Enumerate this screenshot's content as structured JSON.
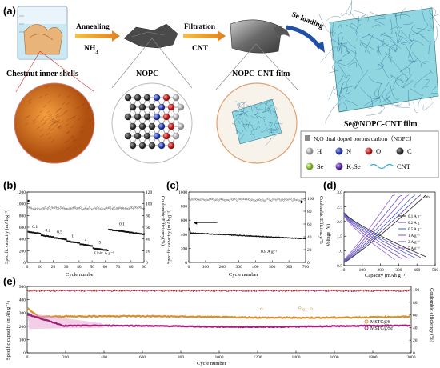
{
  "panel_a": {
    "label": "(a)",
    "step1": {
      "top": "Annealing",
      "bottom": "NH",
      "sub": "3"
    },
    "step2": {
      "top": "Filtration",
      "bottom": "CNT"
    },
    "step3": {
      "top": "Se loading"
    },
    "captions": {
      "shells": "Chestnut inner shells",
      "nopc": "NOPC",
      "film": "NOPC-CNT film",
      "se_film": "Se@NOPC-CNT film"
    },
    "legend": {
      "title": "N,O dual doped porous carbon（NOPC）",
      "h": "H",
      "n": "N",
      "o": "O",
      "c": "C",
      "se": "Se",
      "k2se": "K₂Se",
      "cnt": "CNT"
    }
  },
  "panel_b": {
    "label": "(b)",
    "ylabel": "Specific capacity (mAh g⁻¹)",
    "y2label": "Coulombic Efficiency(%)",
    "xlabel": "Cycle number",
    "yticks": [
      "0",
      "200",
      "400",
      "600",
      "800",
      "1000",
      "1200"
    ],
    "y2ticks": [
      "0",
      "20",
      "40",
      "60",
      "80",
      "100",
      "120"
    ],
    "xticks": [
      "0",
      "10",
      "20",
      "30",
      "40",
      "50",
      "60",
      "70",
      "80",
      "90"
    ],
    "rate_labels": [
      "0.1",
      "0.2",
      "0.5",
      "1",
      "2",
      "5",
      "0.1"
    ],
    "unit_note": "Unit: A g⁻¹"
  },
  "panel_c": {
    "label": "(c)",
    "ylabel": "Specific capacity (mAh g⁻¹)",
    "y2label": "Coulombic Efficiency/%",
    "xlabel": "Cycle number",
    "yticks": [
      "0",
      "200",
      "400",
      "600",
      "800",
      "1000"
    ],
    "y2ticks": [
      "0",
      "20",
      "40",
      "60",
      "80",
      "100"
    ],
    "xticks": [
      "0",
      "100",
      "200",
      "300",
      "400",
      "500",
      "600",
      "700"
    ],
    "current_note": "0.8 A g⁻¹"
  },
  "panel_d": {
    "label": "(d)",
    "ylabel": "Voltage (V)",
    "xlabel": "Capacity (mAh g⁻¹)",
    "yticks": [
      "0.5",
      "1.0",
      "1.5",
      "2.0",
      "2.5",
      "3.0"
    ],
    "xticks": [
      "0",
      "100",
      "200",
      "300",
      "400",
      "500"
    ],
    "cycle_note": "5th",
    "legend": [
      "0.1 A g⁻¹",
      "0.2 A g⁻¹",
      "0.5 A g⁻¹",
      "1 A g⁻¹",
      "2 A g⁻¹",
      "5 A g⁻¹"
    ],
    "colors": [
      "#222222",
      "#5a3fa0",
      "#3a63c8",
      "#8a4fc8",
      "#6a4fd0",
      "#9966cc"
    ]
  },
  "panel_e": {
    "label": "(e)",
    "ylabel": "Specific capacity (mAh g⁻¹)",
    "y2label": "Coulombic efficiency (%)",
    "xlabel": "Cycle number",
    "yticks": [
      "0",
      "100",
      "200",
      "300",
      "400",
      "500"
    ],
    "y2ticks": [
      "0",
      "20",
      "40",
      "60",
      "80",
      "100"
    ],
    "xticks": [
      "0",
      "200",
      "400",
      "600",
      "800",
      "1000",
      "1200",
      "1400",
      "1600",
      "1800",
      "2000"
    ],
    "legend": [
      "MSTC@S",
      "MSTC@Se"
    ],
    "colors": [
      "#d98f2b",
      "#a0207a"
    ]
  }
}
